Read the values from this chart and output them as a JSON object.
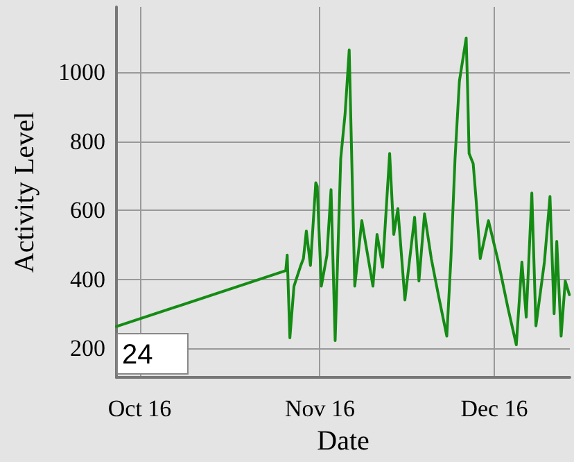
{
  "chart_data": {
    "type": "line",
    "xlabel": "Date",
    "ylabel": "Activity Level",
    "x": [
      "--10-12T00:00",
      "--11-10T03:00",
      "--11-10T09:00",
      "--11-10T20:00",
      "--11-11T13:00",
      "--11-12T17:00",
      "--11-13T04:00",
      "--11-13T16:00",
      "--11-14T09:00",
      "--11-15T07:00",
      "--11-15T13:00",
      "--11-15T18:00",
      "--11-16T06:00",
      "--11-17T05:00",
      "--11-17T22:00",
      "--11-18T15:00",
      "--11-19T14:00",
      "--11-20T08:00",
      "--11-21T01:00",
      "--11-21T12:00",
      "--11-22T00:00",
      "--11-23T05:00",
      "--11-25T03:00",
      "--11-25T20:00",
      "--11-26T19:00",
      "--11-28T00:00",
      "--11-28T17:00",
      "--11-29T10:00",
      "--11-30T15:00",
      "--12-02T07:00",
      "--12-03T01:00",
      "--12-04T00:00",
      "--12-05T04:00",
      "--12-06T09:00",
      "--12-07T20:00",
      "--12-08T13:00",
      "--12-09T06:00",
      "--12-10T00:00",
      "--12-11T04:00",
      "--12-11T10:00",
      "--12-11T16:00",
      "--12-12T09:00",
      "--12-12T21:00",
      "--12-13T14:00",
      "--12-15T00:00",
      "--12-16T17:00",
      "--12-18T09:00",
      "--12-19T19:00",
      "--12-20T18:00",
      "--12-21T12:00",
      "--12-22T11:00",
      "--12-23T04:00",
      "--12-24T15:00",
      "--12-25T14:00",
      "--12-26T07:00",
      "--12-26T18:00",
      "--12-27T12:00",
      "--12-28T05:00",
      "--12-28T22:00"
    ],
    "series": [
      {
        "color": "#148c14",
        "values": [
          263,
          425,
          470,
          230,
          380,
          440,
          460,
          540,
          440,
          680,
          670,
          580,
          380,
          470,
          660,
          222,
          750,
          880,
          1065,
          735,
          380,
          570,
          380,
          530,
          435,
          765,
          530,
          605,
          340,
          580,
          395,
          590,
          460,
          355,
          235,
          460,
          750,
          975,
          1100,
          950,
          765,
          735,
          630,
          460,
          570,
          450,
          315,
          210,
          450,
          290,
          650,
          265,
          450,
          640,
          300,
          510,
          235,
          395,
          355
        ]
      }
    ],
    "xlim": [
      "--10-12",
      "--12-29"
    ],
    "xticks": [
      {
        "value": "--10-16",
        "label": "Oct 16"
      },
      {
        "value": "--11-16",
        "label": "Nov 16"
      },
      {
        "value": "--12-16",
        "label": "Dec 16"
      }
    ],
    "ylim": [
      115,
      1190
    ],
    "yticks": [
      200,
      400,
      600,
      800,
      1000
    ],
    "grid": true,
    "marker": "none",
    "line_style": "solid",
    "annotations": [
      "24"
    ]
  }
}
